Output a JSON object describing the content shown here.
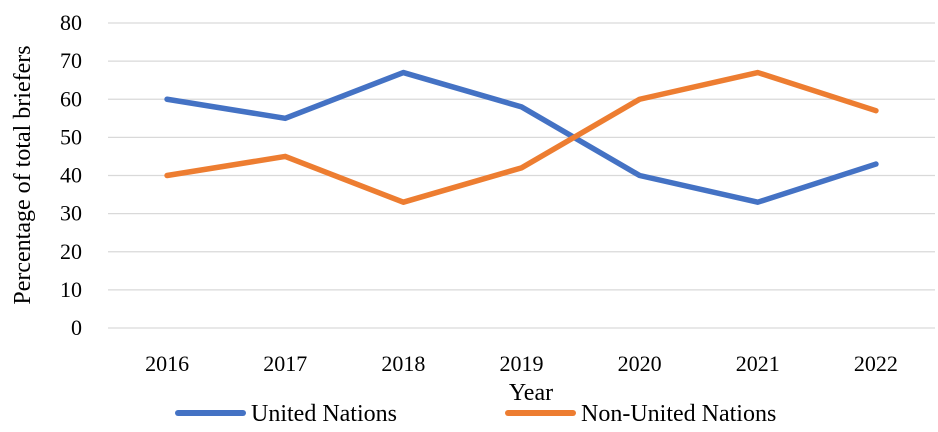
{
  "chart_data": {
    "type": "line",
    "categories": [
      "2016",
      "2017",
      "2018",
      "2019",
      "2020",
      "2021",
      "2022"
    ],
    "series": [
      {
        "name": "United Nations",
        "values": [
          60,
          55,
          67,
          58,
          40,
          33,
          43
        ],
        "color": "#4472c4"
      },
      {
        "name": "Non-United Nations",
        "values": [
          40,
          45,
          33,
          42,
          60,
          67,
          57
        ],
        "color": "#ed7d31"
      }
    ],
    "title": "",
    "xlabel": "Year",
    "ylabel": "Percentage of total briefers",
    "ylim": [
      0,
      80
    ],
    "yticks": [
      0,
      10,
      20,
      30,
      40,
      50,
      60,
      70,
      80
    ],
    "grid": true,
    "legend_position": "bottom"
  }
}
